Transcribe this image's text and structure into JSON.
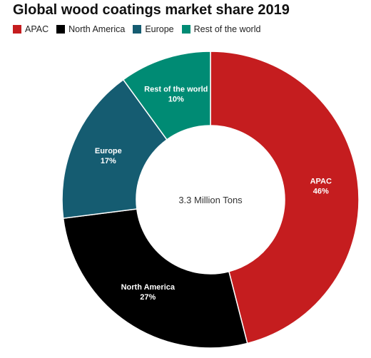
{
  "chart_data": {
    "type": "pie",
    "title": "Global wood coatings market share 2019",
    "center_label": "3.3 Million Tons",
    "legend_position": "top-left",
    "slices": [
      {
        "name": "APAC",
        "label": "APAC",
        "value_label": "46%",
        "value": 46,
        "color": "#c51d1f"
      },
      {
        "name": "North America",
        "label": "North America",
        "value_label": "27%",
        "value": 27,
        "color": "#000000"
      },
      {
        "name": "Europe",
        "label": "Europe",
        "value_label": "17%",
        "value": 17,
        "color": "#155c71"
      },
      {
        "name": "Rest of the world",
        "label": "Rest of the world",
        "value_label": "10%",
        "value": 10,
        "color": "#008b74"
      }
    ]
  }
}
